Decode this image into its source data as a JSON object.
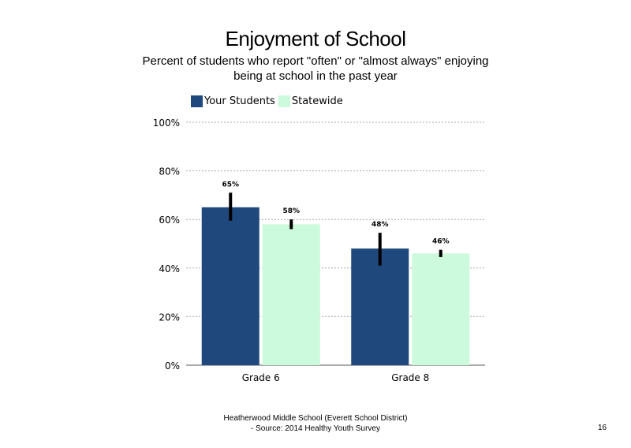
{
  "colors": {
    "your_students": "#1f487c",
    "statewide": "#ccfadc",
    "error_bar": "#000000",
    "grid": "#aaaaaa"
  },
  "chart_data": {
    "type": "bar",
    "title": "Enjoyment of School",
    "subtitle": "Percent of students who report \"often\" or \"almost always\" enjoying being at school in the past year",
    "categories": [
      "Grade 6",
      "Grade 8"
    ],
    "series": [
      {
        "name": "Your Students",
        "values": [
          65,
          48
        ],
        "labels": [
          "65%",
          "48%"
        ],
        "error": [
          [
            59.5,
            71
          ],
          [
            41,
            54.5
          ]
        ]
      },
      {
        "name": "Statewide",
        "values": [
          58,
          46
        ],
        "labels": [
          "58%",
          "46%"
        ],
        "error": [
          [
            56,
            60
          ],
          [
            44.5,
            47.5
          ]
        ]
      }
    ],
    "yticks": [
      "0%",
      "20%",
      "40%",
      "60%",
      "80%",
      "100%"
    ],
    "ytick_values": [
      0,
      20,
      40,
      60,
      80,
      100
    ],
    "ylim": [
      0,
      100
    ],
    "grid": true,
    "legend": "top-left",
    "xlabel": "",
    "ylabel": ""
  },
  "footer": {
    "line1": "Heatherwood Middle School (Everett School District)",
    "line2": "- Source: 2014 Healthy Youth Survey"
  },
  "page_number": "16"
}
